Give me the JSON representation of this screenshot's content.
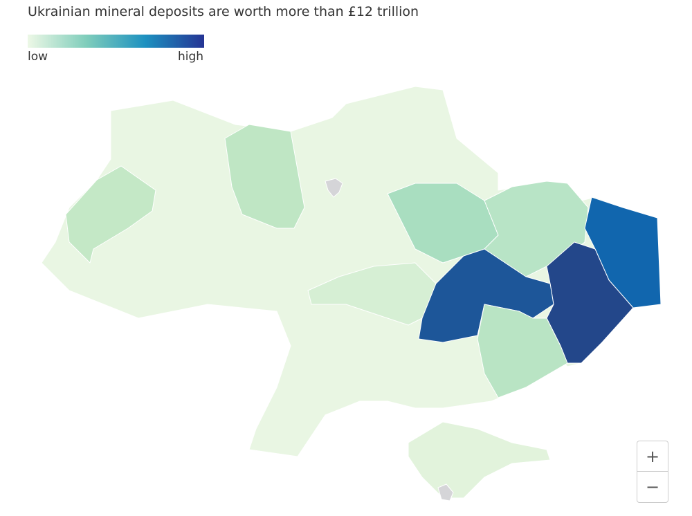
{
  "header": {
    "title": "Ukrainian mineral deposits are worth more than £12 trillion"
  },
  "legend": {
    "low_label": "low",
    "high_label": "high",
    "colors": [
      "#edf8e6",
      "#7fcdbb",
      "#1d91c0",
      "#253494"
    ]
  },
  "zoom": {
    "in_label": "+",
    "out_label": "−"
  }
}
